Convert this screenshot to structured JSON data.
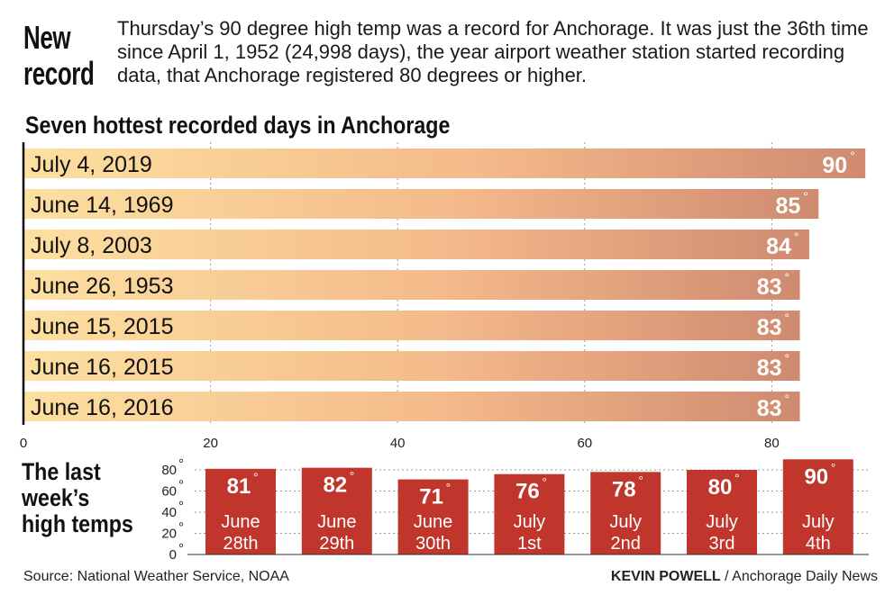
{
  "headline": [
    "New",
    "record"
  ],
  "intro": "Thursday’s 90 degree high temp was a record for Anchorage. It was just the 36th time since April 1, 1952 (24,998 days), the year airport weather station started recording data, that Anchorage registered 80 degrees or higher.",
  "source": "Source: National Weather Service, NOAA",
  "credit_name": "KEVIN POWELL",
  "credit_org": " / Anchorage Daily News",
  "colors": {
    "bar_start": "#fde0a0",
    "bar_end": "#cf8a70",
    "column": "#c0362c",
    "grid": "#999999"
  },
  "chart_data": [
    {
      "type": "bar",
      "orientation": "horizontal",
      "title": "Seven hottest recorded days in Anchorage",
      "categories": [
        "July 4, 2019",
        "June 14, 1969",
        "July 8, 2003",
        "June 26, 1953",
        "June 15, 2015",
        "June 16, 2015",
        "June 16, 2016"
      ],
      "values": [
        90,
        85,
        84,
        83,
        83,
        83,
        83
      ],
      "value_labels": [
        "90",
        "85",
        "84",
        "83",
        "83",
        "83",
        "83"
      ],
      "degree_symbol": "°",
      "xlim": [
        0,
        90
      ],
      "xticks": [
        0,
        20,
        40,
        60,
        80
      ],
      "xtick_labels": [
        "0",
        "20",
        "40",
        "60",
        "80"
      ],
      "grid": true
    },
    {
      "type": "bar",
      "orientation": "vertical",
      "title_lines": [
        "The last",
        "week’s",
        "high temps"
      ],
      "categories": [
        [
          "June",
          "28th"
        ],
        [
          "June",
          "29th"
        ],
        [
          "June",
          "30th"
        ],
        [
          "July",
          "1st"
        ],
        [
          "July",
          "2nd"
        ],
        [
          "July",
          "3rd"
        ],
        [
          "July",
          "4th"
        ]
      ],
      "values": [
        81,
        82,
        71,
        76,
        78,
        80,
        90
      ],
      "value_labels": [
        "81",
        "82",
        "71",
        "76",
        "78",
        "80",
        "90"
      ],
      "degree_symbol": "°",
      "ylim": [
        0,
        90
      ],
      "yticks": [
        0,
        20,
        40,
        60,
        80
      ],
      "ytick_labels": [
        "0",
        "20",
        "40",
        "60",
        "80"
      ],
      "grid": true
    }
  ]
}
